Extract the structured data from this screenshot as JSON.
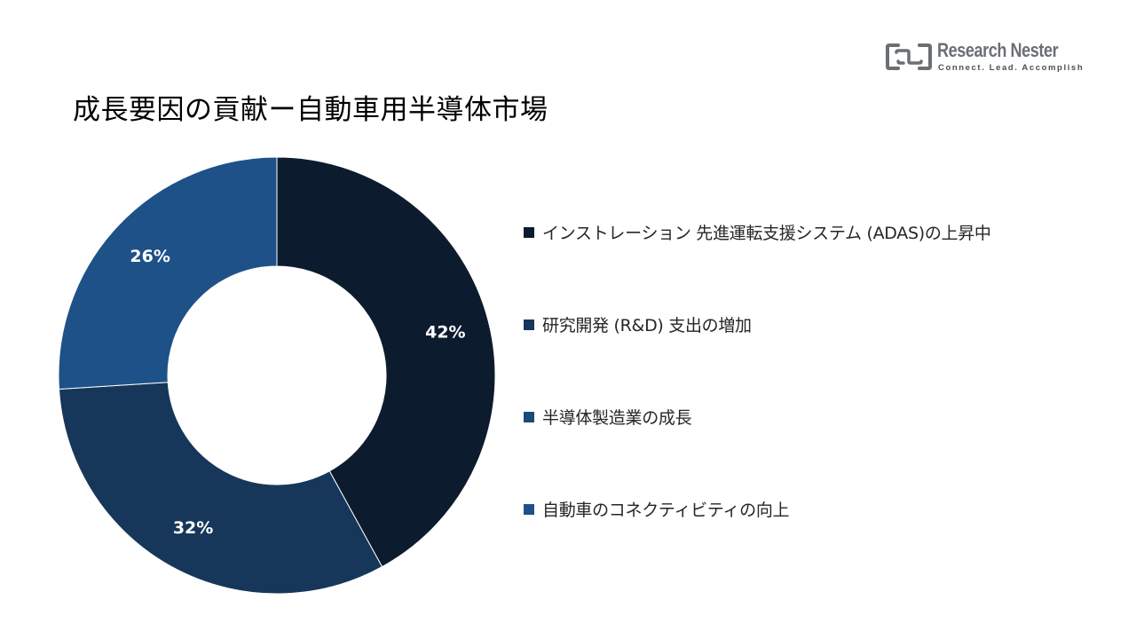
{
  "header": {
    "brand_name": "Research Nester",
    "brand_tagline": "Connect. Lead. Accomplish",
    "title": "成長要因の貢献ー自動車用半導体市場"
  },
  "colors": {
    "background": "#ffffff",
    "label_text": "#ffffff",
    "logo_gray": "#6a6f75"
  },
  "chart_data": {
    "type": "pie",
    "donut": true,
    "start_angle_deg": 0,
    "direction": "clockwise",
    "legend_position": "right",
    "slices": [
      {
        "label": "インストレーション 先進運転支援システム (ADAS)の上昇中",
        "value": 42,
        "display": "42%",
        "color": "#0c1b2e"
      },
      {
        "label": "研究開発 (R&D) 支出の増加",
        "value": 32,
        "display": "32%",
        "color": "#16375a"
      },
      {
        "label": "半導体製造業の成長",
        "value": 0,
        "display": "",
        "color": "#1a4a7a"
      },
      {
        "label": "自動車のコネクティビティの向上",
        "value": 26,
        "display": "26%",
        "color": "#1e5187"
      }
    ]
  }
}
